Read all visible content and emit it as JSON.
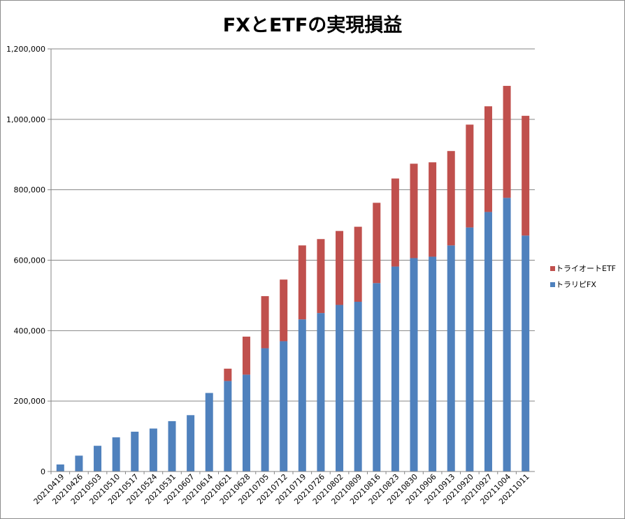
{
  "chart_data": {
    "type": "bar",
    "stacked": true,
    "title": "FXとETFの実現損益",
    "xlabel": "",
    "ylabel": "",
    "ylim": [
      0,
      1200000
    ],
    "yticks": [
      0,
      200000,
      400000,
      600000,
      800000,
      1000000,
      1200000
    ],
    "ytick_labels": [
      "0",
      "200,000",
      "400,000",
      "600,000",
      "800,000",
      "1,000,000",
      "1,200,000"
    ],
    "grid": true,
    "legend_position": "right",
    "categories": [
      "20210419",
      "20210426",
      "20210503",
      "20210510",
      "20210517",
      "20210524",
      "20210531",
      "20210607",
      "20210614",
      "20210621",
      "20210628",
      "20210705",
      "20210712",
      "20210719",
      "20210726",
      "20210802",
      "20210809",
      "20210816",
      "20210823",
      "20210830",
      "20210906",
      "20210913",
      "20210920",
      "20210927",
      "20211004",
      "20211011"
    ],
    "series": [
      {
        "name": "トラリピFX",
        "color": "#4f81bd",
        "values": [
          20000,
          45000,
          73000,
          97000,
          113000,
          122000,
          143000,
          160000,
          223000,
          257000,
          275000,
          350000,
          370000,
          432000,
          450000,
          473000,
          482000,
          535000,
          582000,
          606000,
          610000,
          642000,
          693000,
          737000,
          777000,
          670000
        ]
      },
      {
        "name": "トライオートETF",
        "color": "#c0504d",
        "values": [
          0,
          0,
          0,
          0,
          0,
          0,
          0,
          0,
          0,
          35000,
          108000,
          148000,
          175000,
          210000,
          210000,
          210000,
          213000,
          228000,
          250000,
          268000,
          268000,
          268000,
          292000,
          300000,
          318000,
          340000
        ]
      }
    ]
  }
}
